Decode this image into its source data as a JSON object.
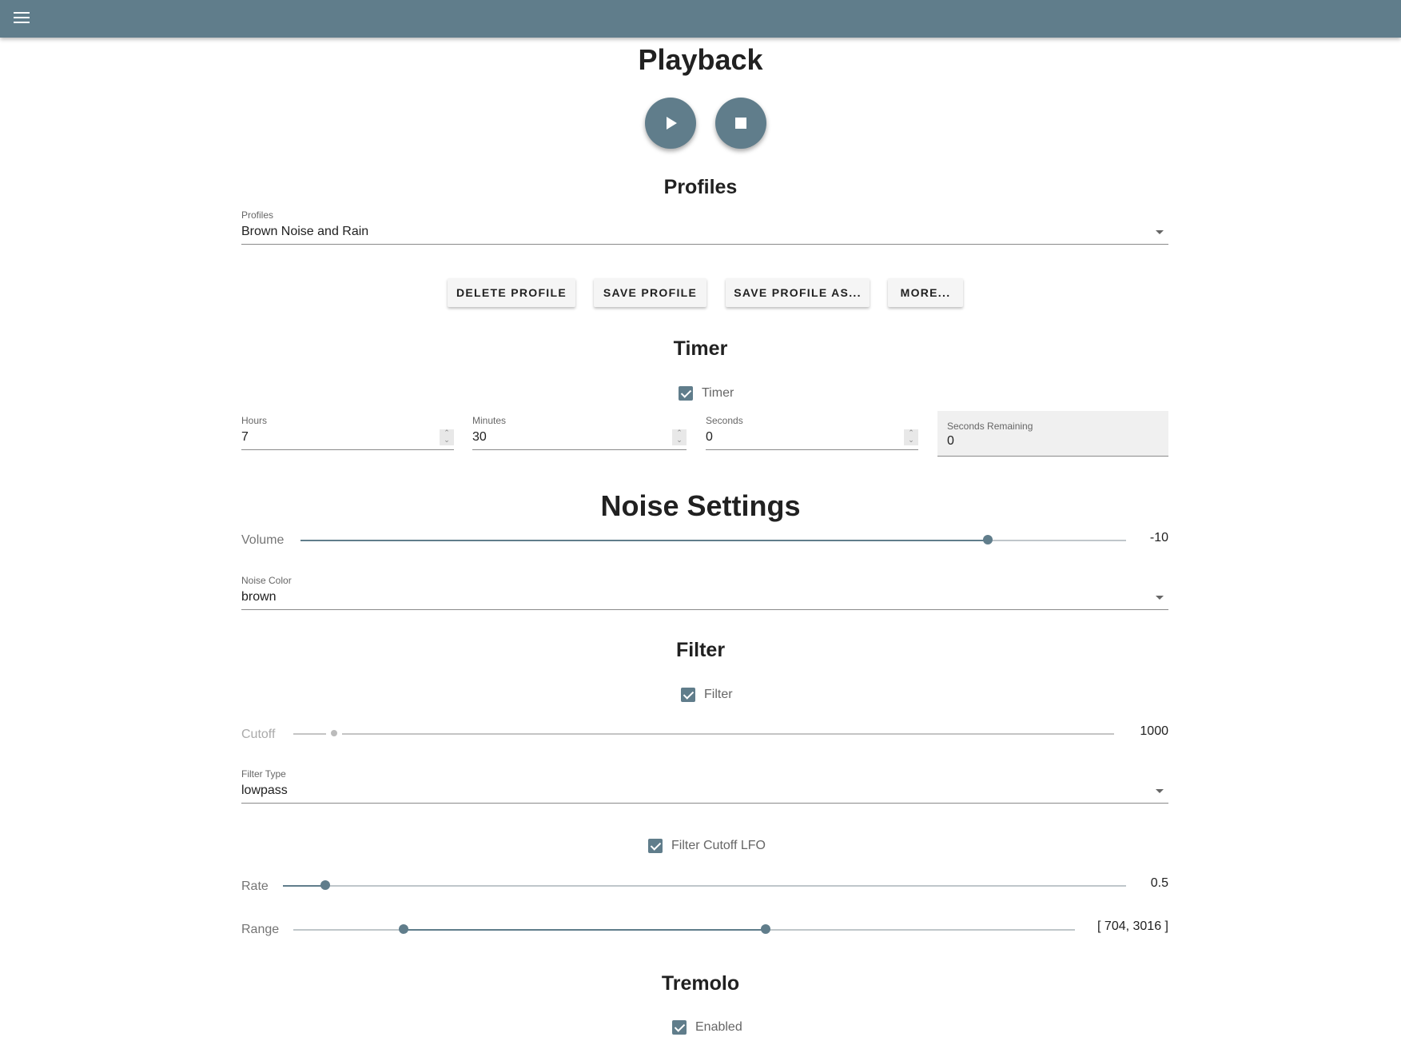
{
  "header": {
    "menu_icon": "hamburger-menu-icon",
    "color": "#607d8b"
  },
  "playback": {
    "title": "Playback",
    "play_icon": "play-icon",
    "stop_icon": "stop-icon"
  },
  "profiles": {
    "title": "Profiles",
    "field_label": "Profiles",
    "selected": "Brown Noise and Rain",
    "buttons": {
      "delete": "DELETE PROFILE",
      "save": "SAVE PROFILE",
      "save_as": "SAVE PROFILE AS...",
      "more": "MORE..."
    }
  },
  "timer": {
    "title": "Timer",
    "checkbox_label": "Timer",
    "checked": true,
    "hours": {
      "label": "Hours",
      "value": "7"
    },
    "minutes": {
      "label": "Minutes",
      "value": "30"
    },
    "seconds": {
      "label": "Seconds",
      "value": "0"
    },
    "remaining": {
      "label": "Seconds Remaining",
      "value": "0"
    }
  },
  "noise": {
    "title": "Noise Settings",
    "volume": {
      "label": "Volume",
      "value": "-10",
      "fraction": 0.833
    },
    "color": {
      "label": "Noise Color",
      "selected": "brown"
    }
  },
  "filter": {
    "title": "Filter",
    "checkbox_label": "Filter",
    "checked": true,
    "cutoff": {
      "label": "Cutoff",
      "value": "1000",
      "fraction": 0.05,
      "disabled": true
    },
    "type": {
      "label": "Filter Type",
      "selected": "lowpass"
    },
    "lfo": {
      "checkbox_label": "Filter Cutoff LFO",
      "checked": true,
      "rate": {
        "label": "Rate",
        "value": "0.5",
        "fraction": 0.05
      },
      "range": {
        "label": "Range",
        "value": "[ 704, 3016 ]",
        "low_fraction": 0.141,
        "high_fraction": 0.604
      }
    }
  },
  "tremolo": {
    "title": "Tremolo",
    "checkbox_label": "Enabled",
    "checked": true
  }
}
